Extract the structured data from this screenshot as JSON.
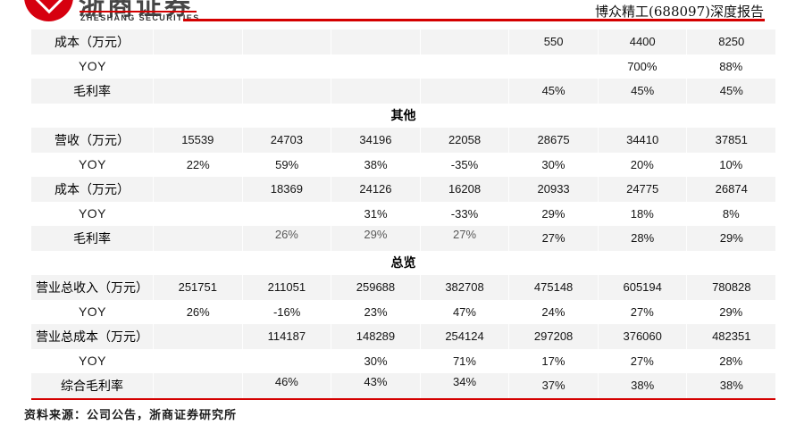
{
  "header": {
    "logo_chinese": "浙商证券",
    "logo_english": "ZHESHANG SECURITIES",
    "report_title": "博众精工(688097)深度报告"
  },
  "accent_color": "#d40000",
  "row_shade_color": "#f3f3f3",
  "table": {
    "rows": [
      {
        "kind": "metric",
        "label": "成本（万元）",
        "values": [
          "",
          "",
          "",
          "",
          "550",
          "4400",
          "8250"
        ]
      },
      {
        "kind": "yoy",
        "label": "YOY",
        "values": [
          "",
          "",
          "",
          "",
          "",
          "700%",
          "88%"
        ]
      },
      {
        "kind": "metric",
        "label": "毛利率",
        "values": [
          "",
          "",
          "",
          "",
          "45%",
          "45%",
          "45%"
        ]
      },
      {
        "kind": "section",
        "label": "其他"
      },
      {
        "kind": "metric",
        "label": "营收（万元）",
        "values": [
          "15539",
          "24703",
          "34196",
          "22058",
          "28675",
          "34410",
          "37851"
        ]
      },
      {
        "kind": "yoy",
        "label": "YOY",
        "values": [
          "22%",
          "59%",
          "38%",
          "-35%",
          "30%",
          "20%",
          "10%"
        ]
      },
      {
        "kind": "metric",
        "label": "成本（万元）",
        "values": [
          "",
          "18369",
          "24126",
          "16208",
          "20933",
          "24775",
          "26874"
        ]
      },
      {
        "kind": "yoy",
        "label": "YOY",
        "values": [
          "",
          "",
          "31%",
          "-33%",
          "29%",
          "18%",
          "8%"
        ]
      },
      {
        "kind": "metric",
        "label": "毛利率",
        "values": [
          "",
          "26%",
          "29%",
          "27%",
          "27%",
          "28%",
          "29%"
        ],
        "muted_cols": [
          1,
          2,
          3
        ]
      },
      {
        "kind": "section",
        "label": "总览"
      },
      {
        "kind": "metric",
        "label": "营业总收入（万元）",
        "values": [
          "251751",
          "211051",
          "259688",
          "382708",
          "475148",
          "605194",
          "780828"
        ]
      },
      {
        "kind": "yoy",
        "label": "YOY",
        "values": [
          "26%",
          "-16%",
          "23%",
          "47%",
          "24%",
          "27%",
          "29%"
        ]
      },
      {
        "kind": "metric",
        "label": "营业总成本（万元）",
        "values": [
          "",
          "114187",
          "148289",
          "254124",
          "297208",
          "376060",
          "482351"
        ]
      },
      {
        "kind": "yoy",
        "label": "YOY",
        "values": [
          "",
          "",
          "30%",
          "71%",
          "17%",
          "27%",
          "28%"
        ]
      },
      {
        "kind": "metric",
        "label": "综合毛利率",
        "values": [
          "",
          "46%",
          "43%",
          "34%",
          "37%",
          "38%",
          "38%"
        ],
        "raised_cols": [
          1,
          2,
          3
        ]
      }
    ]
  },
  "footer": {
    "source": "资料来源：公司公告，浙商证券研究所"
  }
}
